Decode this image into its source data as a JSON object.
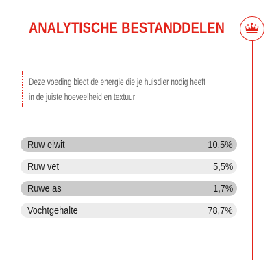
{
  "header": {
    "title": "ANALYTISCHE BESTANDDELEN",
    "logo_icon": "crown-icon",
    "accent_color": "#e2231a"
  },
  "intro": {
    "line1": "Deze voeding biedt de energie die je huisdier nodig heeft",
    "line2": "in de juiste hoeveelheid en textuur"
  },
  "table": {
    "rows": [
      {
        "label": "Ruw eiwit",
        "value": "10,5%"
      },
      {
        "label": "Ruw vet",
        "value": "5,5%"
      },
      {
        "label": "Ruwe as",
        "value": "1,7%"
      },
      {
        "label": "Vochtgehalte",
        "value": "78,7%"
      }
    ]
  }
}
